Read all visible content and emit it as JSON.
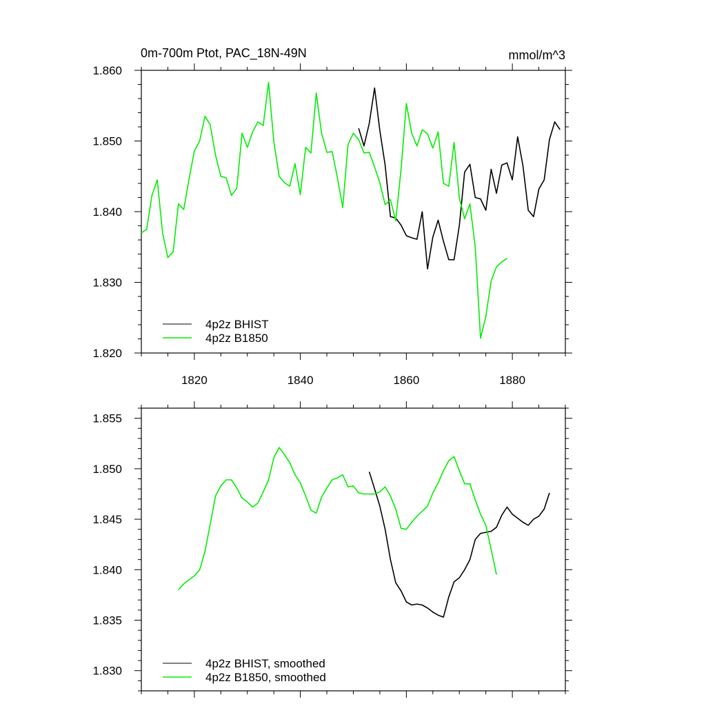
{
  "colors": {
    "bhist": "#000000",
    "b1850": "#00ee00"
  },
  "chart_data": [
    {
      "type": "line",
      "title": "0m-700m Ptot, PAC_18N-49N",
      "units": "mmol/m^3",
      "xlim": [
        1810,
        1890
      ],
      "ylim": [
        1.82,
        1.86
      ],
      "xticks": [
        1820,
        1840,
        1860,
        1880
      ],
      "xtick_labels": [
        "1820",
        "1840",
        "1860",
        "1880"
      ],
      "yticks": [
        1.82,
        1.83,
        1.84,
        1.85,
        1.86
      ],
      "ytick_labels": [
        "1.820",
        "1.830",
        "1.840",
        "1.850",
        "1.860"
      ],
      "legend_position": "bottom-left",
      "series": [
        {
          "name": "4p2z BHIST",
          "color": "#000000",
          "x": [
            1851,
            1852,
            1853,
            1854,
            1855,
            1856,
            1857,
            1858,
            1859,
            1860,
            1861,
            1862,
            1863,
            1864,
            1865,
            1866,
            1867,
            1868,
            1869,
            1870,
            1871,
            1872,
            1873,
            1874,
            1875,
            1876,
            1877,
            1878,
            1879,
            1880,
            1881,
            1882,
            1883,
            1884,
            1885,
            1886,
            1887,
            1888,
            1889
          ],
          "y": [
            1.8518,
            1.8493,
            1.8525,
            1.8575,
            1.8515,
            1.8466,
            1.8393,
            1.8391,
            1.8381,
            1.8366,
            1.8363,
            1.8361,
            1.84,
            1.8319,
            1.8364,
            1.8388,
            1.8358,
            1.8332,
            1.8332,
            1.8381,
            1.8456,
            1.8467,
            1.842,
            1.8418,
            1.8402,
            1.846,
            1.8426,
            1.8466,
            1.8469,
            1.8445,
            1.8506,
            1.8465,
            1.8402,
            1.8393,
            1.8432,
            1.8445,
            1.8502,
            1.8527,
            1.8516
          ]
        },
        {
          "name": "4p2z B1850",
          "color": "#00ee00",
          "x": [
            1810,
            1811,
            1812,
            1813,
            1814,
            1815,
            1816,
            1817,
            1818,
            1819,
            1820,
            1821,
            1822,
            1823,
            1824,
            1825,
            1826,
            1827,
            1828,
            1829,
            1830,
            1831,
            1832,
            1833,
            1834,
            1835,
            1836,
            1837,
            1838,
            1839,
            1840,
            1841,
            1842,
            1843,
            1844,
            1845,
            1846,
            1847,
            1848,
            1849,
            1850,
            1851,
            1852,
            1853,
            1854,
            1855,
            1856,
            1857,
            1858,
            1859,
            1860,
            1861,
            1862,
            1863,
            1864,
            1865,
            1866,
            1867,
            1868,
            1869,
            1870,
            1871,
            1872,
            1873,
            1874,
            1875,
            1876,
            1877,
            1878,
            1879
          ],
          "y": [
            1.837,
            1.8375,
            1.8423,
            1.8445,
            1.837,
            1.8335,
            1.8343,
            1.8411,
            1.8403,
            1.8446,
            1.8486,
            1.85,
            1.8535,
            1.8523,
            1.848,
            1.845,
            1.8448,
            1.8423,
            1.8433,
            1.8511,
            1.8491,
            1.8513,
            1.8527,
            1.8522,
            1.8583,
            1.8499,
            1.845,
            1.8441,
            1.8436,
            1.8468,
            1.8424,
            1.8491,
            1.8483,
            1.8568,
            1.8511,
            1.8484,
            1.8485,
            1.8448,
            1.8406,
            1.8495,
            1.8511,
            1.8502,
            1.8483,
            1.8484,
            1.8463,
            1.8441,
            1.841,
            1.8417,
            1.8387,
            1.846,
            1.8553,
            1.8511,
            1.8493,
            1.8516,
            1.851,
            1.849,
            1.8513,
            1.844,
            1.8436,
            1.8498,
            1.8419,
            1.839,
            1.8411,
            1.835,
            1.8221,
            1.8252,
            1.8302,
            1.8322,
            1.8329,
            1.8334
          ]
        }
      ]
    },
    {
      "type": "line",
      "xlim": [
        1810,
        1890
      ],
      "ylim": [
        1.828,
        1.856
      ],
      "xticks": [
        1820,
        1840,
        1860,
        1880
      ],
      "yticks": [
        1.83,
        1.835,
        1.84,
        1.845,
        1.85,
        1.855
      ],
      "ytick_labels": [
        "1.830",
        "1.835",
        "1.840",
        "1.845",
        "1.850",
        "1.855"
      ],
      "legend_position": "bottom-left",
      "series": [
        {
          "name": "4p2z BHIST, smoothed",
          "color": "#000000",
          "x": [
            1853,
            1854,
            1855,
            1856,
            1857,
            1858,
            1859,
            1860,
            1861,
            1862,
            1863,
            1864,
            1865,
            1866,
            1867,
            1868,
            1869,
            1870,
            1871,
            1872,
            1873,
            1874,
            1875,
            1876,
            1877,
            1878,
            1879,
            1880,
            1881,
            1882,
            1883,
            1884,
            1885,
            1886,
            1887
          ],
          "y": [
            1.8497,
            1.848,
            1.8463,
            1.844,
            1.841,
            1.8387,
            1.8379,
            1.8368,
            1.8365,
            1.8366,
            1.8365,
            1.8362,
            1.8358,
            1.8355,
            1.8353,
            1.8373,
            1.8388,
            1.8392,
            1.84,
            1.841,
            1.843,
            1.8436,
            1.8437,
            1.8438,
            1.8442,
            1.8454,
            1.8462,
            1.8455,
            1.8451,
            1.8447,
            1.8444,
            1.845,
            1.8453,
            1.846,
            1.8476
          ]
        },
        {
          "name": "4p2z B1850, smoothed",
          "color": "#00ee00",
          "x": [
            1817,
            1818,
            1819,
            1820,
            1821,
            1822,
            1823,
            1824,
            1825,
            1826,
            1827,
            1828,
            1829,
            1830,
            1831,
            1832,
            1833,
            1834,
            1835,
            1836,
            1837,
            1838,
            1839,
            1840,
            1841,
            1842,
            1843,
            1844,
            1845,
            1846,
            1847,
            1848,
            1849,
            1850,
            1851,
            1852,
            1853,
            1854,
            1855,
            1856,
            1857,
            1858,
            1859,
            1860,
            1861,
            1862,
            1863,
            1864,
            1865,
            1866,
            1867,
            1868,
            1869,
            1870,
            1871,
            1872,
            1873,
            1874,
            1875,
            1876,
            1877
          ],
          "y": [
            1.838,
            1.8386,
            1.839,
            1.8394,
            1.84,
            1.8418,
            1.8445,
            1.8473,
            1.8483,
            1.8489,
            1.8489,
            1.8481,
            1.8471,
            1.8467,
            1.8462,
            1.8466,
            1.8477,
            1.8489,
            1.8511,
            1.8521,
            1.8514,
            1.8506,
            1.8494,
            1.8486,
            1.8473,
            1.8459,
            1.8456,
            1.8472,
            1.8481,
            1.8489,
            1.8491,
            1.8494,
            1.8482,
            1.8483,
            1.8476,
            1.8475,
            1.8475,
            1.8475,
            1.8477,
            1.8482,
            1.8473,
            1.846,
            1.8441,
            1.844,
            1.8447,
            1.8453,
            1.8458,
            1.8463,
            1.8476,
            1.8486,
            1.8498,
            1.8508,
            1.8512,
            1.8498,
            1.8485,
            1.8485,
            1.8469,
            1.8455,
            1.8444,
            1.842,
            1.8395
          ]
        }
      ]
    }
  ]
}
